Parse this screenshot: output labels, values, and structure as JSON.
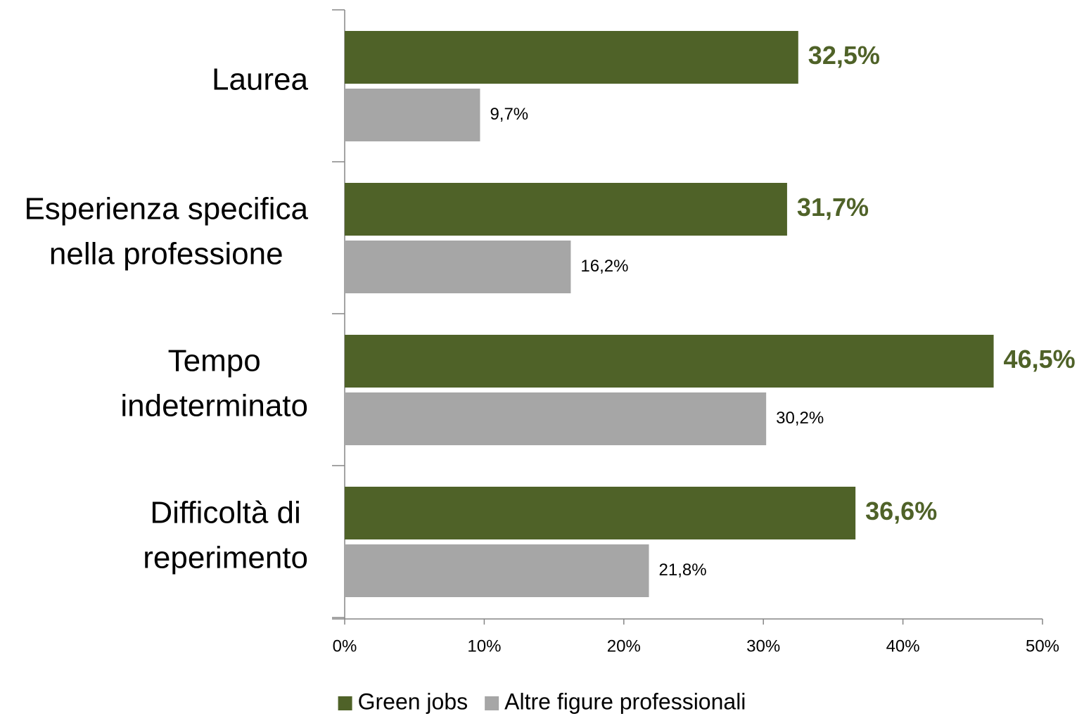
{
  "chart_data": {
    "type": "hbar",
    "categories": [
      [
        "Laurea"
      ],
      [
        "Esperienza specifica",
        "nella professione"
      ],
      [
        "Tempo",
        "indeterminato"
      ],
      [
        "Difficoltà di",
        "reperimento"
      ]
    ],
    "series": [
      {
        "name": "Green jobs",
        "color": "#4f6228",
        "values": [
          32.5,
          31.7,
          46.5,
          36.6
        ],
        "value_labels": [
          "32,5%",
          "31,7%",
          "46,5%",
          "36,6%"
        ]
      },
      {
        "name": "Altre figure professionali",
        "color": "#a6a6a6",
        "values": [
          9.7,
          16.2,
          30.2,
          21.8
        ],
        "value_labels": [
          "9,7%",
          "16,2%",
          "30,2%",
          "21,8%"
        ]
      }
    ],
    "xlim": [
      0,
      50
    ],
    "xticks": [
      {
        "value": 0,
        "label": "0%"
      },
      {
        "value": 10,
        "label": "10%"
      },
      {
        "value": 20,
        "label": "20%"
      },
      {
        "value": 30,
        "label": "30%"
      },
      {
        "value": 40,
        "label": "40%"
      },
      {
        "value": 50,
        "label": "50%"
      }
    ],
    "legend": "bottom"
  }
}
